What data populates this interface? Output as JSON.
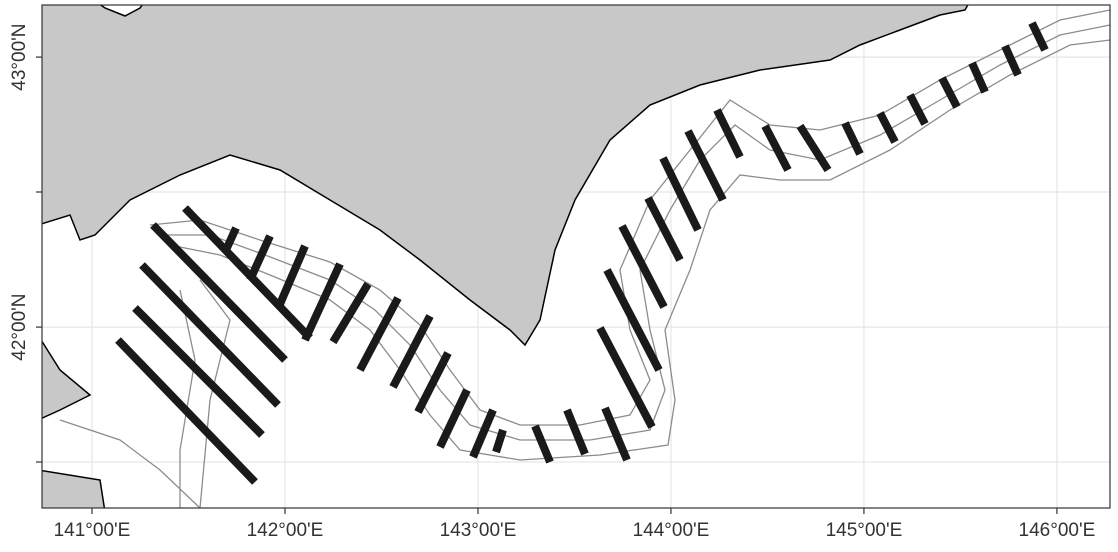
{
  "chart_data": {
    "type": "map",
    "xlim": [
      140.741,
      146.275
    ],
    "ylim": [
      41.33,
      43.193
    ],
    "xticks": [
      {
        "value": 141,
        "label": "141°00'E"
      },
      {
        "value": 142,
        "label": "142°00'E"
      },
      {
        "value": 143,
        "label": "143°00'E"
      },
      {
        "value": 144,
        "label": "144°00'E"
      },
      {
        "value": 145,
        "label": "145°00'E"
      },
      {
        "value": 146,
        "label": "146°00'E"
      }
    ],
    "yticks": [
      {
        "value": 42,
        "label": "42°00'N"
      },
      {
        "value": 43,
        "label": "43°00'N"
      }
    ],
    "grid": true
  }
}
